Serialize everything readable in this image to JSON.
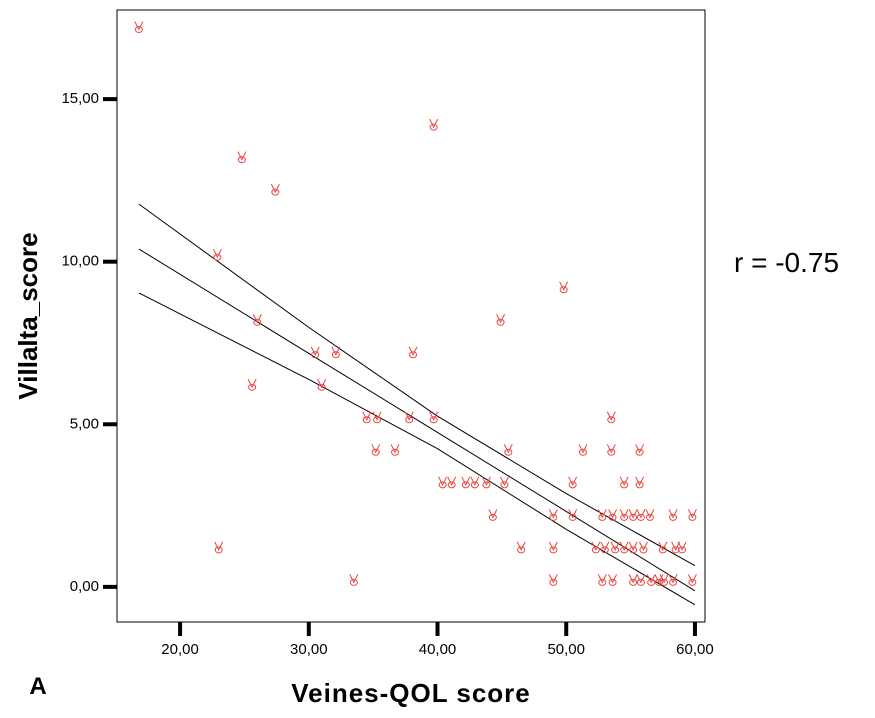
{
  "chart_data": {
    "type": "scatter",
    "x_label": "Veines-QOL score",
    "y_label": "Villalta_score",
    "annotations": {
      "r": "r = -0.75",
      "panel": "A"
    },
    "xlim": [
      15.1,
      60.78
    ],
    "ylim": [
      -1.08,
      17.74
    ],
    "xticks": [
      {
        "value": 20,
        "label": "20,00"
      },
      {
        "value": 30,
        "label": "30,00"
      },
      {
        "value": 40,
        "label": "40,00"
      },
      {
        "value": 50,
        "label": "50,00"
      },
      {
        "value": 60,
        "label": "60,00"
      }
    ],
    "yticks": [
      {
        "value": 0,
        "label": "0,00"
      },
      {
        "value": 5,
        "label": "5,00"
      },
      {
        "value": 10,
        "label": "10,00"
      },
      {
        "value": 15,
        "label": "15,00"
      }
    ],
    "points": {
      "color": "#e8453c",
      "x": [
        16.8,
        24.8,
        27.4,
        39.7,
        22.9,
        49.8,
        26,
        44.9,
        30.5,
        32.1,
        38.1,
        25.6,
        31,
        34.5,
        35.3,
        37.8,
        39.7,
        53.5,
        35.2,
        36.7,
        45.5,
        51.3,
        53.5,
        55.7,
        40.4,
        41.1,
        42.2,
        42.9,
        43.8,
        45.2,
        50.5,
        54.5,
        55.7,
        44.3,
        49,
        50.5,
        52.8,
        53.6,
        54.5,
        55.2,
        55.8,
        56.5,
        58.3,
        59.8,
        23,
        46.5,
        49,
        52.3,
        53,
        53.8,
        54.5,
        55.2,
        56,
        57.5,
        58.5,
        59,
        33.5,
        49,
        52.8,
        53.6,
        55.2,
        55.8,
        56.6,
        57.2,
        57.6,
        58.3,
        59.8
      ],
      "values": [
        17.2,
        13.2,
        12.2,
        14.2,
        10.2,
        9.2,
        8.2,
        8.2,
        7.2,
        7.2,
        7.2,
        6.2,
        6.2,
        5.2,
        5.2,
        5.2,
        5.2,
        5.2,
        4.2,
        4.2,
        4.2,
        4.2,
        4.2,
        4.2,
        3.2,
        3.2,
        3.2,
        3.2,
        3.2,
        3.2,
        3.2,
        3.2,
        3.2,
        2.2,
        2.2,
        2.2,
        2.2,
        2.2,
        2.2,
        2.2,
        2.2,
        2.2,
        2.2,
        2.2,
        1.2,
        1.2,
        1.2,
        1.2,
        1.2,
        1.2,
        1.2,
        1.2,
        1.2,
        1.2,
        1.2,
        1.2,
        0.2,
        0.2,
        0.2,
        0.2,
        0.2,
        0.2,
        0.2,
        0.2,
        0.2,
        0.2,
        0.2
      ]
    },
    "fit_lines": [
      {
        "color": "#000000",
        "x": [
          16.8,
          30,
          40,
          50,
          60
        ],
        "values": [
          11.77,
          7.98,
          5.25,
          2.87,
          0.65
        ]
      },
      {
        "color": "#000000",
        "x": [
          16.8,
          30,
          40,
          50,
          60
        ],
        "values": [
          10.39,
          7.18,
          4.75,
          2.32,
          -0.12
        ]
      },
      {
        "color": "#000000",
        "x": [
          16.8,
          30,
          40,
          50,
          60
        ],
        "values": [
          9.04,
          6.38,
          4.25,
          1.77,
          -0.55
        ]
      }
    ]
  }
}
